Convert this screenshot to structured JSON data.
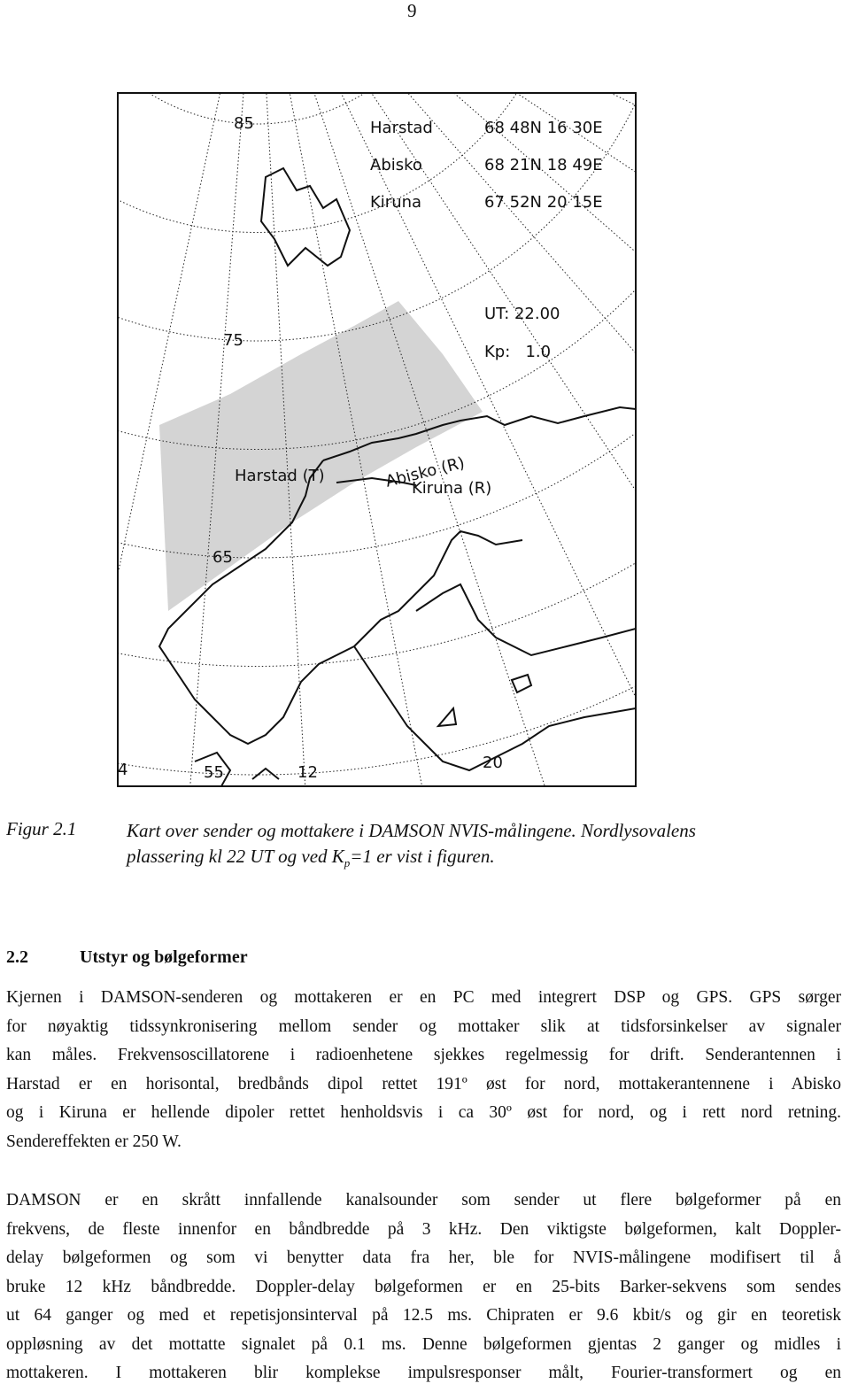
{
  "page_number": "9",
  "figure": {
    "stations": [
      {
        "name": "Harstad",
        "coords": "68 48N 16 30E"
      },
      {
        "name": "Abisko",
        "coords": "68 21N 18 49E"
      },
      {
        "name": "Kiruna",
        "coords": "67 52N 20 15E"
      }
    ],
    "ut": "UT: 22.00",
    "kp": "Kp:   1.0",
    "latitude_labels": [
      "85",
      "75",
      "65",
      "55"
    ],
    "longitude_labels": [
      "4",
      "12",
      "20"
    ],
    "map_labels": {
      "harstad": "Harstad (T)",
      "abisko": "Abisko (R)",
      "kiruna": "Kiruna (R)"
    }
  },
  "caption": {
    "label": "Figur 2.1",
    "line_1": "Kart over sender og mottakere i DAMSON NVIS-målingene. Nordlysovalens",
    "line_2_before": "plassering kl 22 UT og ved K",
    "line_2_sub": "p",
    "line_2_after": "=1 er vist i figuren."
  },
  "section": {
    "number": "2.2",
    "title": "Utstyr og bølgeformer"
  },
  "paragraphs": [
    [
      "Kjernen i DAMSON-senderen og mottakeren er en PC med integrert DSP og GPS. GPS sørger",
      "for nøyaktig tidssynkronisering mellom sender og mottaker slik at tidsforsinkelser av signaler",
      "kan måles. Frekvensoscillatorene i radioenhetene sjekkes regelmessig for drift. Senderantennen i",
      "Harstad er en horisontal, bredbånds dipol rettet 191º øst for nord, mottakerantennene i Abisko",
      "og i Kiruna er hellende dipoler rettet henholdsvis i ca 30º øst for nord, og i rett nord retning.",
      "Sendereffekten er 250 W."
    ],
    [
      "DAMSON er en skrått innfallende kanalsounder som sender ut flere bølgeformer på en",
      "frekvens, de fleste innenfor en båndbredde på 3 kHz. Den viktigste bølgeformen, kalt Doppler-",
      "delay bølgeformen og som vi benytter data fra her, ble for NVIS-målingene modifisert til å",
      "bruke 12 kHz båndbredde. Doppler-delay bølgeformen er en 25-bits Barker-sekvens som sendes",
      "ut 64 ganger og med et repetisjonsinterval på 12.5 ms. Chipraten er 9.6 kbit/s og gir en teoretisk",
      "oppløsning av det mottatte signalet på 0.1 ms. Denne bølgeformen gjentas 2 ganger og midles i",
      "mottakeren. I mottakeren blir komplekse impulsresponser målt, Fourier-transformert og en"
    ]
  ]
}
